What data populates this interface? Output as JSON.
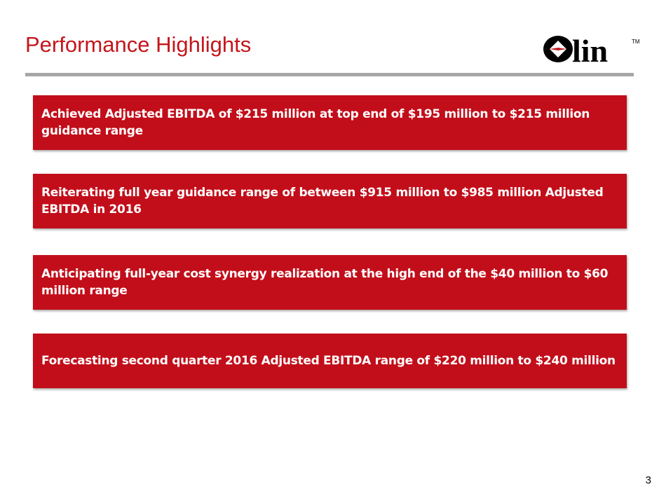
{
  "slide": {
    "title": "Performance Highlights",
    "page_number": "3"
  },
  "logo": {
    "text": "lin",
    "trademark": "TM"
  },
  "highlights": [
    {
      "text": "Achieved Adjusted EBITDA of $215 million at top end of $195 million to $215 million guidance range"
    },
    {
      "text": "Reiterating full year guidance range of between $915 million to $985 million Adjusted EBITDA in 2016"
    },
    {
      "text": "Anticipating full-year cost synergy realization at the high end of the $40 million to $60 million range"
    },
    {
      "text": "Forecasting second quarter 2016 Adjusted EBITDA range of $220 million to $240 million"
    }
  ],
  "colors": {
    "accent_red": "#c20e1a",
    "title_red": "#c4161c",
    "rule_gray": "#a6a6a6"
  }
}
